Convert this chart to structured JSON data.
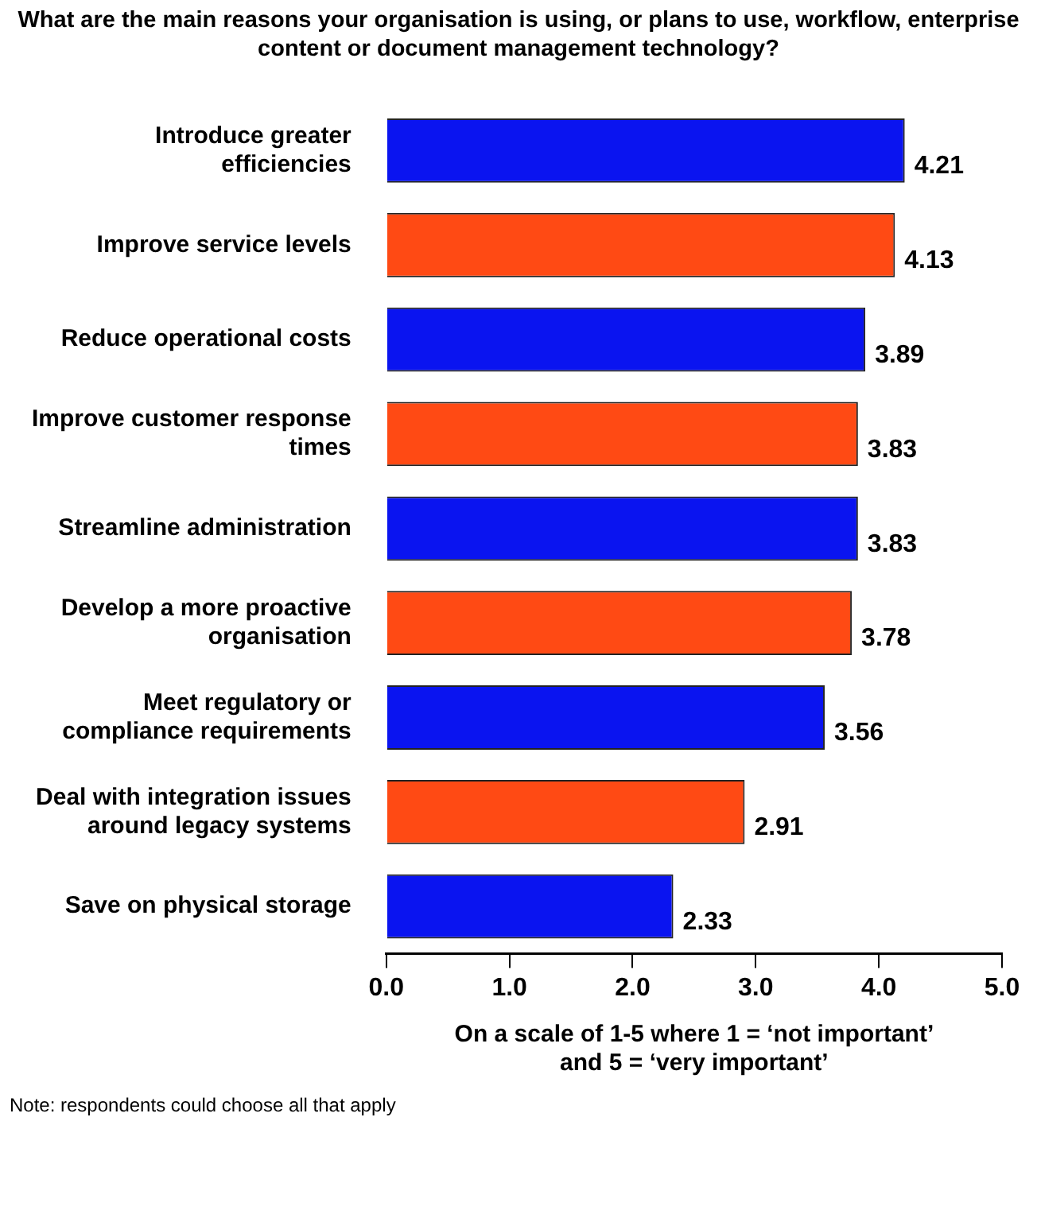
{
  "chart_data": {
    "type": "bar",
    "orientation": "horizontal",
    "title": "What are the main reasons your organisation is using, or plans to use, workflow, enterprise content or document management technology?",
    "categories": [
      "Introduce greater efficiencies",
      "Improve service levels",
      "Reduce operational costs",
      "Improve customer response times",
      "Streamline administration",
      "Develop a more proactive organisation",
      "Meet regulatory or compliance requirements",
      "Deal with integration issues around legacy systems",
      "Save on physical storage"
    ],
    "values": [
      4.21,
      4.13,
      3.89,
      3.83,
      3.83,
      3.78,
      3.56,
      2.91,
      2.33
    ],
    "colors": [
      "#0a14f0",
      "#ff4a14",
      "#0a14f0",
      "#ff4a14",
      "#0a14f0",
      "#ff4a14",
      "#0a14f0",
      "#ff4a14",
      "#0a14f0"
    ],
    "xlim": [
      0,
      5
    ],
    "xticks": [
      {
        "value": 0,
        "label": "0.0"
      },
      {
        "value": 1,
        "label": "1.0"
      },
      {
        "value": 2,
        "label": "2.0"
      },
      {
        "value": 3,
        "label": "3.0"
      },
      {
        "value": 4,
        "label": "4.0"
      },
      {
        "value": 5,
        "label": "5.0"
      }
    ],
    "xlabel": "On a scale of 1-5 where 1 = ‘not important’ and 5 = ‘very important’",
    "data_labels": true,
    "grid": false,
    "legend": false,
    "annotations": [
      "Note: respondents could choose all that apply"
    ]
  }
}
